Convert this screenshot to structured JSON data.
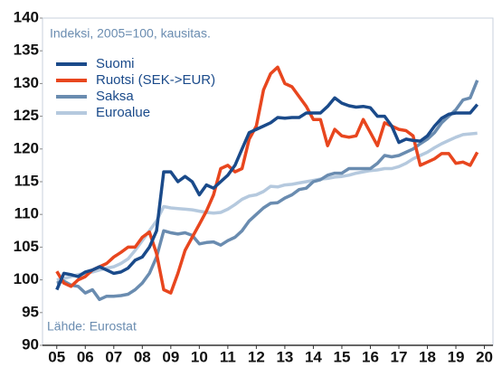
{
  "chart_data": {
    "type": "line",
    "annotations": [
      "Indeksi, 2005=100, kausitas.",
      "Lähde: Eurostat"
    ],
    "x": [
      2005,
      2005.25,
      2005.5,
      2005.75,
      2006,
      2006.25,
      2006.5,
      2006.75,
      2007,
      2007.25,
      2007.5,
      2007.75,
      2008,
      2008.25,
      2008.5,
      2008.75,
      2009,
      2009.25,
      2009.5,
      2009.75,
      2010,
      2010.25,
      2010.5,
      2010.75,
      2011,
      2011.25,
      2011.5,
      2011.75,
      2012,
      2012.25,
      2012.5,
      2012.75,
      2013,
      2013.25,
      2013.5,
      2013.75,
      2014,
      2014.25,
      2014.5,
      2014.75,
      2015,
      2015.25,
      2015.5,
      2015.75,
      2016,
      2016.25,
      2016.5,
      2016.75,
      2017,
      2017.25,
      2017.5,
      2017.75,
      2018,
      2018.25,
      2018.5,
      2018.75,
      2019,
      2019.25,
      2019.5,
      2019.75
    ],
    "series": [
      {
        "name": "Suomi",
        "color": "#1a4a8a",
        "values": [
          98.5,
          101,
          100.8,
          100.5,
          101.2,
          101.5,
          102,
          101.5,
          101,
          101.2,
          101.8,
          103,
          103.5,
          105,
          107.5,
          116.5,
          116.5,
          115,
          115.8,
          115,
          113,
          114.5,
          114,
          115,
          116,
          117.5,
          120,
          122.5,
          123,
          123.5,
          124,
          124.8,
          124.7,
          124.8,
          124.8,
          125.5,
          125.5,
          125.5,
          126.5,
          127.8,
          127,
          126.6,
          126.4,
          126.5,
          126.3,
          125,
          125,
          123.5,
          121,
          121.5,
          121.3,
          121.2,
          122,
          123.5,
          124.7,
          125.3,
          125.5,
          125.5,
          125.5,
          126.8
        ]
      },
      {
        "name": "Ruotsi (SEK->EUR)",
        "color": "#e8461e",
        "values": [
          101.3,
          99.5,
          99,
          100,
          100.5,
          101.5,
          102,
          102.5,
          103.5,
          104.2,
          105,
          105,
          106.5,
          107.3,
          104,
          98.5,
          98,
          101,
          104.5,
          106.5,
          108.5,
          110.5,
          113,
          117,
          117.5,
          116.5,
          117,
          121.5,
          123.5,
          129,
          131.5,
          132.5,
          130,
          129.5,
          128,
          126.5,
          124.5,
          124.5,
          120.5,
          123,
          122,
          121.8,
          122,
          124.5,
          122.5,
          120.5,
          124,
          123.5,
          123,
          122.8,
          122,
          117.5,
          118,
          118.5,
          119.3,
          119.3,
          117.8,
          118,
          117.5,
          119.5
        ]
      },
      {
        "name": "Saksa",
        "color": "#6a8cb0",
        "values": [
          99.5,
          99.8,
          99.2,
          99,
          98,
          98.5,
          97,
          97.5,
          97.5,
          97.6,
          97.8,
          98.5,
          99.5,
          101,
          103.5,
          107.5,
          107.2,
          107,
          107.2,
          106.8,
          105.5,
          105.7,
          105.8,
          105.3,
          106,
          106.5,
          107.5,
          109,
          110,
          111,
          111.7,
          111.8,
          112.5,
          113,
          113.8,
          114,
          115,
          115.3,
          116,
          116.3,
          116.3,
          117,
          117,
          117,
          117,
          117.8,
          119,
          118.8,
          119,
          119.5,
          120,
          120.8,
          121.5,
          122.5,
          124,
          125,
          126,
          127.5,
          127.8,
          130.5
        ]
      },
      {
        "name": "Euroalue",
        "color": "#b5c9de",
        "values": [
          100,
          100.2,
          100.5,
          100.8,
          101,
          101.2,
          101.5,
          101.8,
          102,
          102.5,
          103.2,
          104.5,
          106,
          107.5,
          109,
          111.2,
          111,
          110.9,
          110.8,
          110.7,
          110.5,
          110.3,
          110.2,
          110.3,
          110.8,
          111.5,
          112.3,
          112.8,
          113,
          113.5,
          114.3,
          114.2,
          114.5,
          114.6,
          114.8,
          115,
          115.2,
          115.4,
          115.5,
          115.7,
          115.8,
          116,
          116.3,
          116.5,
          116.7,
          116.8,
          117,
          117,
          117.3,
          117.8,
          118.5,
          119,
          119.5,
          120.2,
          120.8,
          121.3,
          121.8,
          122.2,
          122.3,
          122.4
        ]
      }
    ],
    "xlim": [
      2004.5,
      2020.3
    ],
    "xticks": [
      {
        "value": 2005,
        "label": "05"
      },
      {
        "value": 2006,
        "label": "06"
      },
      {
        "value": 2007,
        "label": "07"
      },
      {
        "value": 2008,
        "label": "08"
      },
      {
        "value": 2009,
        "label": "09"
      },
      {
        "value": 2010,
        "label": "10"
      },
      {
        "value": 2011,
        "label": "11"
      },
      {
        "value": 2012,
        "label": "12"
      },
      {
        "value": 2013,
        "label": "13"
      },
      {
        "value": 2014,
        "label": "14"
      },
      {
        "value": 2015,
        "label": "15"
      },
      {
        "value": 2016,
        "label": "16"
      },
      {
        "value": 2017,
        "label": "17"
      },
      {
        "value": 2018,
        "label": "18"
      },
      {
        "value": 2019,
        "label": "19"
      },
      {
        "value": 2020,
        "label": "20"
      }
    ],
    "ylim": [
      90,
      140
    ],
    "yticks": [
      90,
      95,
      100,
      105,
      110,
      115,
      120,
      125,
      130,
      135,
      140
    ],
    "grid": false,
    "legend": "upper-left"
  }
}
